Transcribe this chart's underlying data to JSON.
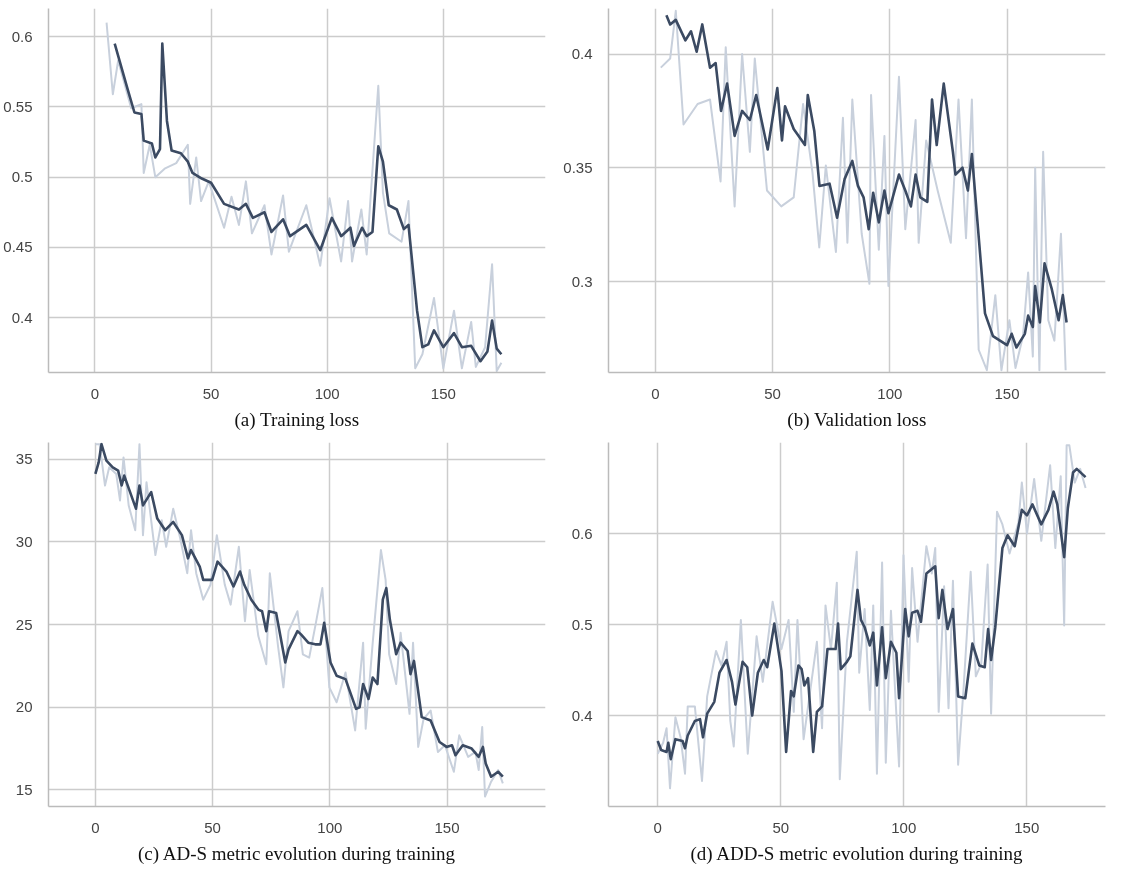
{
  "chart_data": [
    {
      "type": "line",
      "title": "(a) Training loss",
      "xlim": [
        -20,
        194
      ],
      "xticks": [
        0,
        50,
        100,
        150
      ],
      "ylim": [
        0.361,
        0.62
      ],
      "yticks": [
        0.4,
        0.45,
        0.5,
        0.55,
        0.6
      ],
      "grid": true,
      "series": [
        {
          "color": "#c8d0dc",
          "x": [
            5,
            7.7,
            10,
            15.6,
            20,
            21,
            23.6,
            26,
            30,
            35,
            40,
            41,
            43.6,
            45.7,
            49,
            55.6,
            58.8,
            62,
            65,
            67.6,
            73,
            76,
            81,
            83.5,
            91,
            97,
            101,
            106,
            109,
            110.7,
            114.7,
            117,
            122,
            124,
            126.7,
            132,
            135,
            137.9,
            141,
            146,
            150,
            154.6,
            158,
            162,
            164,
            168,
            171,
            173,
            175
          ],
          "values": [
            0.61,
            0.559,
            0.583,
            0.549,
            0.552,
            0.503,
            0.523,
            0.5,
            0.506,
            0.51,
            0.523,
            0.481,
            0.514,
            0.483,
            0.497,
            0.464,
            0.486,
            0.466,
            0.497,
            0.46,
            0.48,
            0.445,
            0.487,
            0.447,
            0.48,
            0.437,
            0.485,
            0.44,
            0.483,
            0.44,
            0.477,
            0.445,
            0.565,
            0.489,
            0.46,
            0.454,
            0.483,
            0.364,
            0.374,
            0.414,
            0.364,
            0.405,
            0.364,
            0.397,
            0.365,
            0.379,
            0.438,
            0.362,
            0.368
          ]
        },
        {
          "color": "#3b4a62",
          "x": [
            8.5,
            14,
            17,
            20,
            21,
            24.5,
            26,
            28,
            29,
            31,
            33,
            37,
            40,
            42,
            46,
            50,
            55.6,
            62,
            65,
            68,
            73,
            76,
            81,
            84,
            91,
            97,
            102,
            106,
            110,
            111.5,
            115,
            117,
            119.5,
            122,
            124,
            126.5,
            130,
            133,
            135,
            138.7,
            141,
            143.5,
            146,
            150,
            154.6,
            158,
            162,
            166,
            169,
            171,
            173,
            175
          ],
          "values": [
            0.595,
            0.563,
            0.546,
            0.545,
            0.526,
            0.524,
            0.514,
            0.52,
            0.595,
            0.54,
            0.519,
            0.517,
            0.511,
            0.503,
            0.499,
            0.496,
            0.481,
            0.477,
            0.481,
            0.471,
            0.475,
            0.461,
            0.47,
            0.458,
            0.466,
            0.448,
            0.471,
            0.458,
            0.464,
            0.451,
            0.464,
            0.458,
            0.461,
            0.522,
            0.511,
            0.48,
            0.477,
            0.463,
            0.466,
            0.405,
            0.379,
            0.381,
            0.391,
            0.379,
            0.389,
            0.379,
            0.38,
            0.369,
            0.376,
            0.398,
            0.378,
            0.374
          ]
        }
      ]
    },
    {
      "type": "line",
      "title": "(b) Validation loss",
      "xlim": [
        -20,
        192
      ],
      "xticks": [
        0,
        50,
        100,
        150
      ],
      "ylim": [
        0.26,
        0.42
      ],
      "yticks": [
        0.3,
        0.35,
        0.4
      ],
      "grid": true,
      "series": [
        {
          "color": "#c8d0dc",
          "x": [
            2.3,
            6.3,
            8.7,
            12,
            18,
            23.3,
            27.8,
            30,
            33.8,
            37,
            40.3,
            42.4,
            47.6,
            53.7,
            59,
            63,
            67,
            69.9,
            72.7,
            77,
            80,
            81.9,
            84,
            88,
            91.3,
            92,
            95.3,
            97.7,
            99.4,
            103.9,
            106.6,
            111,
            112.3,
            115.5,
            120.4,
            126,
            129.3,
            132.5,
            135,
            137.9,
            141.4,
            145,
            147.6,
            151,
            153.6,
            156.8,
            159,
            161,
            162,
            163.8,
            165.4,
            167.6,
            170.2,
            173,
            175
          ],
          "values": [
            0.394,
            0.398,
            0.419,
            0.369,
            0.378,
            0.38,
            0.344,
            0.403,
            0.333,
            0.4,
            0.357,
            0.398,
            0.34,
            0.333,
            0.337,
            0.378,
            0.348,
            0.315,
            0.351,
            0.313,
            0.372,
            0.317,
            0.38,
            0.321,
            0.299,
            0.382,
            0.314,
            0.364,
            0.298,
            0.39,
            0.323,
            0.371,
            0.317,
            0.362,
            0.34,
            0.317,
            0.38,
            0.319,
            0.38,
            0.27,
            0.261,
            0.294,
            0.261,
            0.283,
            0.262,
            0.276,
            0.304,
            0.267,
            0.35,
            0.261,
            0.357,
            0.283,
            0.274,
            0.321,
            0.261
          ]
        },
        {
          "color": "#3b4a62",
          "x": [
            4.7,
            6.3,
            8.7,
            12.8,
            15.2,
            17.6,
            20,
            23.3,
            25.7,
            28,
            30.6,
            33.8,
            37,
            40.3,
            43,
            47.9,
            52,
            54,
            55.3,
            59,
            63.8,
            65,
            67.8,
            70,
            74.3,
            77.5,
            80.7,
            84,
            86.4,
            88.8,
            91,
            92.9,
            95.3,
            97.7,
            99.4,
            103.9,
            106.6,
            109,
            111,
            113,
            116,
            118,
            120,
            123,
            126.9,
            128,
            131,
            133.3,
            135,
            140.6,
            144,
            147,
            150,
            152,
            154,
            157.6,
            159,
            161,
            162,
            164,
            166,
            169,
            172,
            173.8,
            175.4
          ],
          "values": [
            0.417,
            0.413,
            0.415,
            0.406,
            0.41,
            0.401,
            0.413,
            0.394,
            0.396,
            0.375,
            0.387,
            0.364,
            0.375,
            0.371,
            0.382,
            0.358,
            0.385,
            0.362,
            0.377,
            0.367,
            0.36,
            0.382,
            0.366,
            0.342,
            0.343,
            0.328,
            0.345,
            0.353,
            0.342,
            0.337,
            0.323,
            0.339,
            0.326,
            0.34,
            0.33,
            0.347,
            0.34,
            0.333,
            0.347,
            0.337,
            0.335,
            0.38,
            0.36,
            0.387,
            0.357,
            0.347,
            0.35,
            0.34,
            0.356,
            0.286,
            0.276,
            0.274,
            0.272,
            0.277,
            0.271,
            0.277,
            0.285,
            0.28,
            0.298,
            0.282,
            0.308,
            0.297,
            0.283,
            0.294,
            0.282
          ]
        }
      ]
    },
    {
      "type": "line",
      "title": "(c) AD-S metric evolution during training",
      "xlim": [
        -20,
        192
      ],
      "xticks": [
        0,
        50,
        100,
        150
      ],
      "ylim": [
        14,
        36
      ],
      "yticks": [
        15,
        20,
        25,
        30,
        35
      ],
      "grid": true,
      "series": [
        {
          "color": "#c8d0dc",
          "x": [
            0,
            1.8,
            4.1,
            5.9,
            8.9,
            10.5,
            12,
            14.2,
            17,
            18.8,
            20.3,
            21.8,
            25.6,
            28.3,
            30.2,
            33.2,
            36.2,
            39.2,
            40.8,
            43,
            46,
            49.1,
            51.8,
            55.2,
            57.7,
            61.2,
            63.8,
            65.8,
            69.5,
            72.9,
            74.4,
            77.9,
            80.2,
            82.4,
            86.2,
            88.5,
            91.2,
            93.8,
            96.8,
            99.8,
            102.9,
            106.7,
            110.8,
            114.2,
            115.3,
            118.3,
            121.8,
            123.8,
            125.3,
            128.3,
            130.2,
            134,
            135.5,
            137.7,
            140,
            143,
            146.1,
            149.1,
            152.9,
            155.2,
            159,
            162.1,
            163.5,
            165,
            166.2,
            168.8,
            171.8,
            173.8
          ],
          "values": [
            35.9,
            35.9,
            33.4,
            34.5,
            34.1,
            32.5,
            35.1,
            32.2,
            30.7,
            35.9,
            30.4,
            33.6,
            29.2,
            31.3,
            29.7,
            32.0,
            30.2,
            28.1,
            30.7,
            28.1,
            26.5,
            27.4,
            30.4,
            27.4,
            26.2,
            29.7,
            25.2,
            28.3,
            24.3,
            22.6,
            28.1,
            23.7,
            21.2,
            24.6,
            25.8,
            23.2,
            23.0,
            24.9,
            27.2,
            21.2,
            20.3,
            22.1,
            18.6,
            23.9,
            18.7,
            23.9,
            29.5,
            27.7,
            23.2,
            21.4,
            24.5,
            19.6,
            23.9,
            17.6,
            19.3,
            19.8,
            17.3,
            17.7,
            16.1,
            18.3,
            17.0,
            17.3,
            16.2,
            18.8,
            14.6,
            15.5,
            16.2,
            15.4
          ]
        },
        {
          "color": "#3b4a62",
          "x": [
            0,
            1.4,
            2.6,
            4.7,
            7.4,
            9.7,
            11.2,
            12.3,
            17.3,
            18.8,
            20.3,
            23.8,
            26.4,
            29.8,
            33.2,
            36.9,
            39.5,
            40.8,
            44.5,
            46,
            49.8,
            52.1,
            55.9,
            58.9,
            61.7,
            63.5,
            66.5,
            69.5,
            71.1,
            72.9,
            74.1,
            77.1,
            81,
            82.4,
            86.2,
            87.7,
            90.8,
            93.8,
            96,
            97.6,
            100.3,
            102.9,
            106.7,
            111.2,
            112.7,
            114.2,
            116.5,
            118.3,
            120.3,
            122.6,
            124.1,
            125.6,
            128.3,
            130.2,
            133.2,
            134.4,
            135.9,
            139.2,
            143,
            146.8,
            149.8,
            152.1,
            153.6,
            156.7,
            160.5,
            163.5,
            165.3,
            166.5,
            168.8,
            171.8,
            173.8
          ],
          "values": [
            34.1,
            34.8,
            35.9,
            34.9,
            34.5,
            34.3,
            33.4,
            34.0,
            32.0,
            33.4,
            32.2,
            33.0,
            31.4,
            30.7,
            31.2,
            30.4,
            29.0,
            29.5,
            28.5,
            27.7,
            27.7,
            28.8,
            28.2,
            27.3,
            28.2,
            27.4,
            26.5,
            25.9,
            25.8,
            24.6,
            25.8,
            25.7,
            22.7,
            23.5,
            24.6,
            24.4,
            23.9,
            23.8,
            23.8,
            25.1,
            22.7,
            21.9,
            21.7,
            19.9,
            20.0,
            21.4,
            20.5,
            21.8,
            21.4,
            26.5,
            27.2,
            25.3,
            23.2,
            23.9,
            23.4,
            22.0,
            22.8,
            19.4,
            19.2,
            17.9,
            17.6,
            17.7,
            17.1,
            17.7,
            17.5,
            17.0,
            17.6,
            16.6,
            15.8,
            16.1,
            15.8
          ]
        }
      ]
    },
    {
      "type": "line",
      "title": "(d) ADD-S metric evolution during training",
      "xlim": [
        -20,
        182
      ],
      "xticks": [
        0,
        50,
        100,
        150
      ],
      "ylim": [
        0.3,
        0.7
      ],
      "yticks": [
        0.4,
        0.5,
        0.6
      ],
      "grid": true,
      "series": [
        {
          "color": "#c8d0dc",
          "x": [
            0,
            2.2,
            3.6,
            5,
            7.2,
            9.3,
            11.1,
            12.2,
            15.1,
            18,
            20.1,
            23.7,
            25.9,
            28,
            29.5,
            30.9,
            33.8,
            36.6,
            40.2,
            42.7,
            46.7,
            50.3,
            53.2,
            55.3,
            56.8,
            59.3,
            64.7,
            66.8,
            68.2,
            70.4,
            72.8,
            74,
            76.9,
            80.9,
            81.9,
            84.1,
            86.2,
            87.6,
            89.1,
            91.2,
            92.7,
            94.8,
            98.1,
            99.9,
            102,
            103.4,
            105.6,
            109.2,
            111.4,
            112.8,
            114.2,
            116.4,
            118.2,
            120,
            122.1,
            124.3,
            127.2,
            129.3,
            131.5,
            134.1,
            135.5,
            137.9,
            140.1,
            143,
            146.6,
            148,
            150.1,
            153,
            155.9,
            159.5,
            161.6,
            163.8,
            165.2,
            166.2,
            167.3,
            169.5,
            171.7,
            173.9
          ],
          "values": [
            0.358,
            0.37,
            0.386,
            0.32,
            0.398,
            0.376,
            0.336,
            0.41,
            0.41,
            0.328,
            0.421,
            0.471,
            0.455,
            0.481,
            0.394,
            0.366,
            0.505,
            0.358,
            0.487,
            0.437,
            0.525,
            0.473,
            0.505,
            0.404,
            0.505,
            0.374,
            0.481,
            0.386,
            0.521,
            0.473,
            0.546,
            0.33,
            0.481,
            0.58,
            0.447,
            0.517,
            0.406,
            0.521,
            0.336,
            0.568,
            0.348,
            0.515,
            0.344,
            0.576,
            0.437,
            0.562,
            0.481,
            0.586,
            0.556,
            0.584,
            0.404,
            0.542,
            0.408,
            0.548,
            0.346,
            0.429,
            0.558,
            0.443,
            0.457,
            0.566,
            0.402,
            0.624,
            0.61,
            0.578,
            0.612,
            0.656,
            0.6,
            0.66,
            0.592,
            0.675,
            0.584,
            0.663,
            0.499,
            0.697,
            0.697,
            0.656,
            0.671,
            0.65
          ]
        },
        {
          "color": "#3b4a62",
          "x": [
            0,
            1.4,
            3.6,
            4.3,
            5.3,
            7.2,
            10.1,
            11.1,
            12.2,
            15.1,
            17.2,
            18.4,
            20.1,
            23,
            25.1,
            28,
            30.2,
            31.6,
            34.5,
            36.4,
            38.4,
            40.7,
            43.1,
            44.5,
            47.4,
            50.3,
            52.2,
            54.2,
            55.3,
            57.2,
            58.5,
            59.6,
            61.1,
            63.2,
            64.7,
            66.8,
            69,
            72.3,
            73.3,
            74.4,
            76.9,
            78.3,
            81.2,
            82.6,
            84.1,
            86.2,
            87.6,
            89.1,
            91.2,
            92.7,
            94.8,
            97,
            98.1,
            100.6,
            102,
            103.4,
            105.6,
            107,
            109.2,
            112.8,
            114.2,
            115.7,
            117.8,
            120,
            122.1,
            125,
            127.9,
            130.7,
            132.9,
            134.3,
            135.5,
            137.2,
            140.1,
            142.2,
            145.1,
            148,
            150.1,
            152.3,
            155.9,
            158.8,
            160.9,
            162.4,
            165.2,
            166.7,
            168.8,
            170.3,
            173.9
          ],
          "values": [
            0.372,
            0.362,
            0.36,
            0.37,
            0.352,
            0.374,
            0.372,
            0.364,
            0.378,
            0.394,
            0.396,
            0.376,
            0.402,
            0.415,
            0.447,
            0.461,
            0.437,
            0.412,
            0.459,
            0.453,
            0.4,
            0.447,
            0.461,
            0.453,
            0.501,
            0.449,
            0.36,
            0.427,
            0.421,
            0.455,
            0.451,
            0.433,
            0.441,
            0.36,
            0.404,
            0.41,
            0.473,
            0.473,
            0.501,
            0.451,
            0.459,
            0.465,
            0.538,
            0.505,
            0.497,
            0.477,
            0.491,
            0.433,
            0.497,
            0.441,
            0.481,
            0.469,
            0.419,
            0.517,
            0.487,
            0.513,
            0.515,
            0.503,
            0.556,
            0.564,
            0.507,
            0.538,
            0.495,
            0.517,
            0.421,
            0.419,
            0.479,
            0.455,
            0.453,
            0.495,
            0.461,
            0.497,
            0.584,
            0.598,
            0.586,
            0.626,
            0.62,
            0.632,
            0.61,
            0.626,
            0.646,
            0.632,
            0.574,
            0.628,
            0.667,
            0.671,
            0.662
          ]
        }
      ]
    }
  ]
}
